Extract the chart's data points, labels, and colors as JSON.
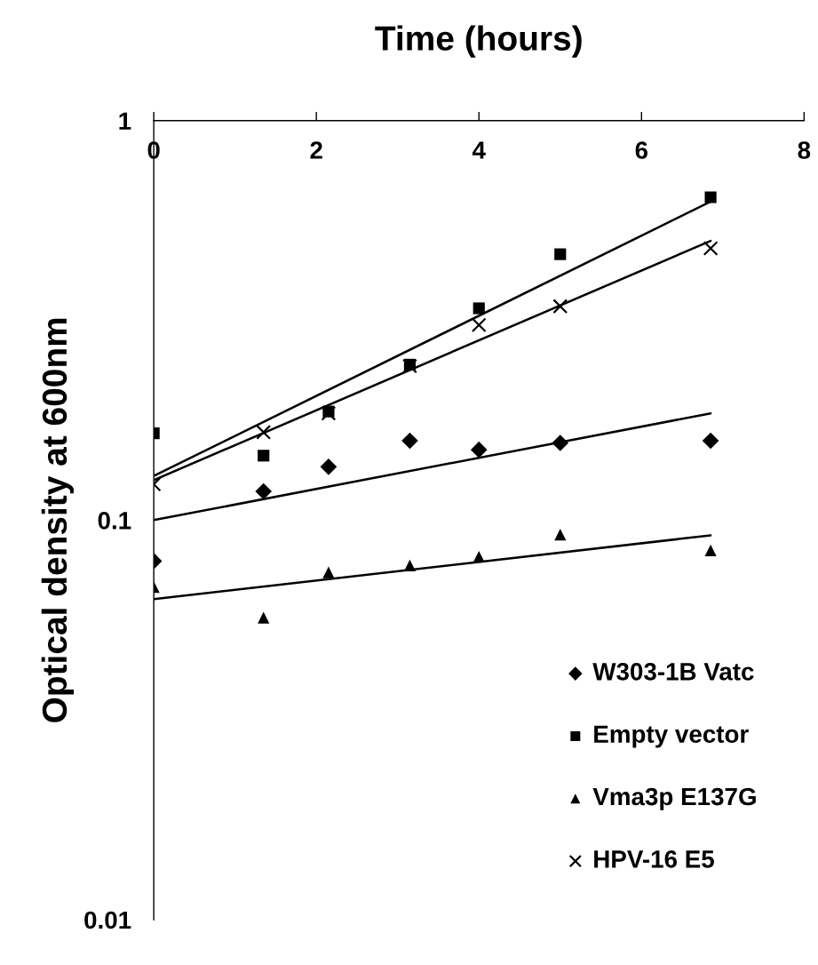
{
  "chart_data": {
    "type": "scatter",
    "xlabel": "Time (hours)",
    "ylabel": "Optical density at 600nm",
    "log": "y",
    "xlim": [
      0,
      8
    ],
    "xticks": [
      0,
      2,
      4,
      6,
      8
    ],
    "ylim": [
      0.01,
      1
    ],
    "yticks": [
      0.01,
      0.1,
      1
    ],
    "grid": false,
    "legend": "bottom right",
    "series": [
      {
        "name": "W303-1B Vatc",
        "marker": "diamond",
        "color": "#000000",
        "x": [
          0,
          1.35,
          2.15,
          3.15,
          4,
          5,
          6.85
        ],
        "values": [
          0.079,
          0.118,
          0.136,
          0.158,
          0.15,
          0.156,
          0.158
        ]
      },
      {
        "name": "Empty vector",
        "marker": "square",
        "color": "#000000",
        "x": [
          0,
          1.35,
          2.15,
          3.15,
          4,
          5,
          6.85
        ],
        "values": [
          0.165,
          0.145,
          0.187,
          0.245,
          0.339,
          0.463,
          0.643
        ]
      },
      {
        "name": "Vma3p E137G",
        "marker": "triangle",
        "color": "#000000",
        "x": [
          0,
          1.35,
          2.15,
          3.15,
          4,
          5,
          6.85
        ],
        "values": [
          0.068,
          0.057,
          0.074,
          0.077,
          0.081,
          0.092,
          0.084
        ]
      },
      {
        "name": "HPV-16 E5",
        "marker": "cross",
        "color": "#000000",
        "x": [
          0,
          1.35,
          2.15,
          3.15,
          4,
          5,
          6.85
        ],
        "values": [
          0.123,
          0.166,
          0.185,
          0.243,
          0.308,
          0.343,
          0.479
        ]
      },
      {
        "type": "line",
        "line_style": "solid",
        "color": "#000000",
        "x": [
          0,
          6.85
        ],
        "values": [
          0.1,
          0.185
        ]
      },
      {
        "type": "line",
        "line_style": "solid",
        "color": "#000000",
        "x": [
          0,
          6.85
        ],
        "values": [
          0.129,
          0.627
        ]
      },
      {
        "type": "line",
        "line_style": "solid",
        "color": "#000000",
        "x": [
          0,
          6.85
        ],
        "values": [
          0.0634,
          0.0916
        ]
      },
      {
        "type": "line",
        "line_style": "solid",
        "color": "#000000",
        "x": [
          0,
          6.85
        ],
        "values": [
          0.126,
          0.5
        ]
      }
    ]
  }
}
